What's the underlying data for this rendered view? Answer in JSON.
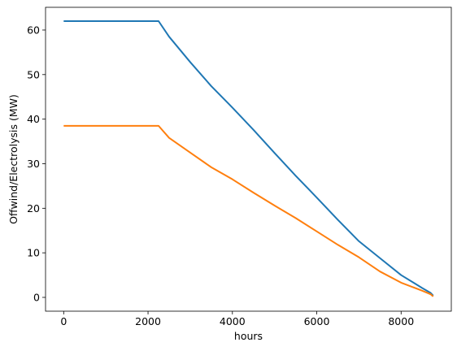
{
  "chart_data": {
    "type": "line",
    "title": "",
    "xlabel": "hours",
    "ylabel": "Offwind/Electrolysis (MW)",
    "xlim": [
      -430,
      9190
    ],
    "ylim": [
      -3.1,
      65.1
    ],
    "xticks": [
      0,
      2000,
      4000,
      6000,
      8000
    ],
    "yticks": [
      0,
      10,
      20,
      30,
      40,
      50,
      60
    ],
    "grid": false,
    "legend": "none",
    "series": [
      {
        "color": "#1f77b4",
        "x": [
          0,
          500,
          1000,
          1500,
          2000,
          2250,
          2500,
          3000,
          3500,
          4000,
          4500,
          5000,
          5500,
          6000,
          6500,
          7000,
          7500,
          8000,
          8500,
          8700,
          8760
        ],
        "y": [
          62,
          62,
          62,
          62,
          62,
          62,
          58.5,
          52.8,
          47.4,
          42.6,
          37.6,
          32.4,
          27.3,
          22.4,
          17.4,
          12.6,
          8.8,
          5.0,
          2.1,
          1.0,
          0.4
        ]
      },
      {
        "color": "#ff7f0e",
        "x": [
          0,
          500,
          1000,
          1500,
          2000,
          2250,
          2500,
          3000,
          3500,
          4000,
          4500,
          5000,
          5500,
          6000,
          6500,
          7000,
          7500,
          8000,
          8500,
          8700,
          8760
        ],
        "y": [
          38.5,
          38.5,
          38.5,
          38.5,
          38.5,
          38.5,
          35.8,
          32.5,
          29.2,
          26.5,
          23.5,
          20.6,
          17.8,
          14.8,
          11.8,
          9.0,
          5.8,
          3.3,
          1.5,
          0.7,
          0.2
        ]
      }
    ]
  }
}
